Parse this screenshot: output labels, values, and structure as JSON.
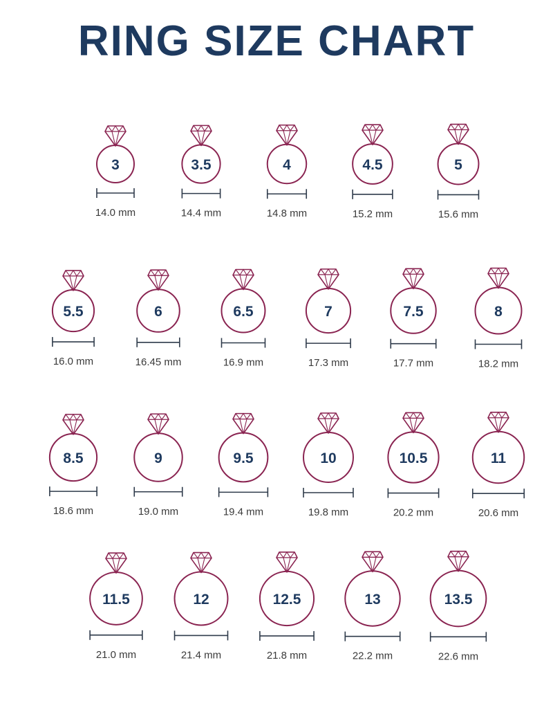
{
  "chart_data": {
    "type": "table",
    "title": "RING SIZE CHART",
    "colors": {
      "ring": "#8a2451",
      "text": "#1e3a5f",
      "scale": "#2e3a4a",
      "caption": "#3a3a3a"
    },
    "rows": [
      [
        {
          "size": "3",
          "mm": 14.0,
          "label": "14.0 mm"
        },
        {
          "size": "3.5",
          "mm": 14.4,
          "label": "14.4 mm"
        },
        {
          "size": "4",
          "mm": 14.8,
          "label": "14.8 mm"
        },
        {
          "size": "4.5",
          "mm": 15.2,
          "label": "15.2 mm"
        },
        {
          "size": "5",
          "mm": 15.6,
          "label": "15.6 mm"
        }
      ],
      [
        {
          "size": "5.5",
          "mm": 16.0,
          "label": "16.0 mm"
        },
        {
          "size": "6",
          "mm": 16.45,
          "label": "16.45 mm"
        },
        {
          "size": "6.5",
          "mm": 16.9,
          "label": "16.9 mm"
        },
        {
          "size": "7",
          "mm": 17.3,
          "label": "17.3 mm"
        },
        {
          "size": "7.5",
          "mm": 17.7,
          "label": "17.7 mm"
        },
        {
          "size": "8",
          "mm": 18.2,
          "label": "18.2 mm"
        }
      ],
      [
        {
          "size": "8.5",
          "mm": 18.6,
          "label": "18.6 mm"
        },
        {
          "size": "9",
          "mm": 19.0,
          "label": "19.0 mm"
        },
        {
          "size": "9.5",
          "mm": 19.4,
          "label": "19.4 mm"
        },
        {
          "size": "10",
          "mm": 19.8,
          "label": "19.8 mm"
        },
        {
          "size": "10.5",
          "mm": 20.2,
          "label": "20.2 mm"
        },
        {
          "size": "11",
          "mm": 20.6,
          "label": "20.6 mm"
        }
      ],
      [
        {
          "size": "11.5",
          "mm": 21.0,
          "label": "21.0 mm"
        },
        {
          "size": "12",
          "mm": 21.4,
          "label": "21.4 mm"
        },
        {
          "size": "12.5",
          "mm": 21.8,
          "label": "21.8 mm"
        },
        {
          "size": "13",
          "mm": 22.2,
          "label": "22.2 mm"
        },
        {
          "size": "13.5",
          "mm": 22.6,
          "label": "22.6 mm"
        }
      ]
    ]
  }
}
